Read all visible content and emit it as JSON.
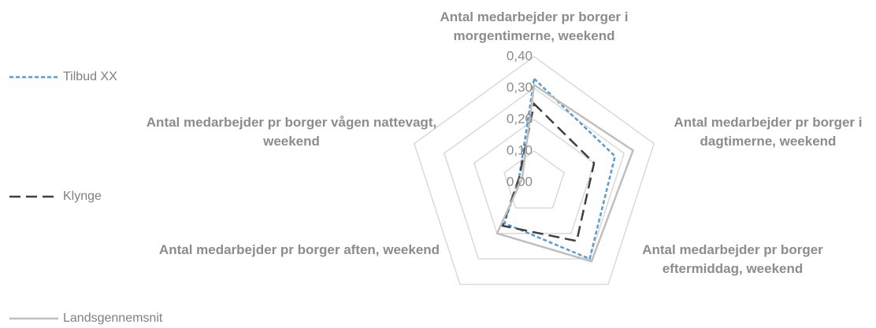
{
  "chart_data": {
    "type": "radar",
    "categories": [
      "Antal medarbejder pr borger i morgentimerne, weekend",
      "Antal medarbejder pr borger i dagtimerne, weekend",
      "Antal medarbejder pr borger eftermiddag, weekend",
      "Antal medarbejder pr borger aften, weekend",
      "Antal medarbejder pr borger vågen nattevagt, weekend"
    ],
    "series": [
      {
        "name": "Tilbud XX",
        "color": "#5b9bd5",
        "values": [
          0.33,
          0.27,
          0.3,
          0.16,
          0.05
        ]
      },
      {
        "name": "Klynge",
        "color": "#404040",
        "values": [
          0.25,
          0.2,
          0.23,
          0.17,
          0.05
        ]
      },
      {
        "name": "Landsgennemsnit",
        "color": "#bfbfbf",
        "values": [
          0.31,
          0.33,
          0.31,
          0.2,
          0.04
        ]
      }
    ],
    "ylim": [
      0,
      0.4
    ],
    "yticks": [
      {
        "value": 0,
        "label": "0,00"
      },
      {
        "value": 0.1,
        "label": "0,10"
      },
      {
        "value": 0.2,
        "label": "0,20"
      },
      {
        "value": 0.3,
        "label": "0,30"
      },
      {
        "value": 0.4,
        "label": "0,40"
      }
    ],
    "grid": true
  }
}
